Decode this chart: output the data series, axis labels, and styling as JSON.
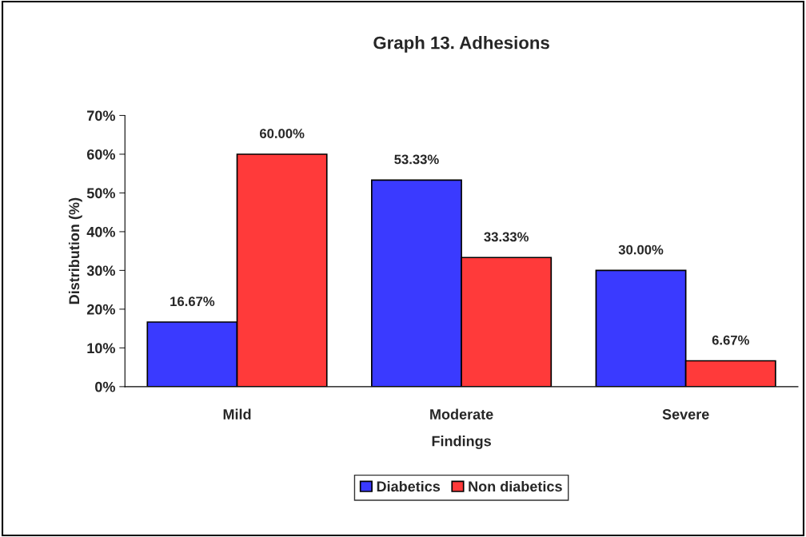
{
  "chart_data": {
    "type": "bar",
    "title": "Graph 13. Adhesions",
    "xlabel": "Findings",
    "ylabel": "Distribution (%)",
    "categories": [
      "Mild",
      "Moderate",
      "Severe"
    ],
    "series": [
      {
        "name": "Diabetics",
        "color": "#3a3aff",
        "values": [
          16.67,
          53.33,
          30.0
        ],
        "value_labels": [
          "16.67%",
          "53.33%",
          "30.00%"
        ]
      },
      {
        "name": "Non diabetics",
        "color": "#ff3a3a",
        "values": [
          60.0,
          33.33,
          6.67
        ],
        "value_labels": [
          "60.00%",
          "33.33%",
          "6.67%"
        ]
      }
    ],
    "ylim": [
      0,
      70
    ],
    "yticks": [
      {
        "value": 0,
        "label": "0%"
      },
      {
        "value": 10,
        "label": "10%"
      },
      {
        "value": 20,
        "label": "20%"
      },
      {
        "value": 30,
        "label": "30%"
      },
      {
        "value": 40,
        "label": "40%"
      },
      {
        "value": 50,
        "label": "50%"
      },
      {
        "value": 60,
        "label": "60%"
      },
      {
        "value": 70,
        "label": "70%"
      }
    ],
    "grid": false,
    "legend": "bottom"
  }
}
